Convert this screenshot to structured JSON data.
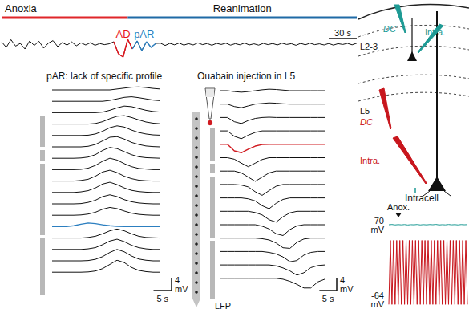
{
  "chart_data": [
    {
      "type": "line",
      "tick_labels": false,
      "epochs": [
        {
          "label": "Anoxia",
          "start": 0,
          "end": 135,
          "color": "#e0262a"
        },
        {
          "label": "Reanimation",
          "start": 135,
          "end": 380,
          "color": "#1f6aa6"
        }
      ],
      "x": [
        0,
        5,
        10,
        15,
        20,
        25,
        30,
        35,
        40,
        45,
        50,
        55,
        60,
        65,
        70,
        75,
        80,
        85,
        90,
        95,
        100,
        105,
        110,
        115,
        120,
        125,
        130,
        135,
        140,
        145,
        150,
        155,
        160,
        165,
        170,
        175,
        180,
        185,
        190,
        195,
        200,
        205,
        210,
        215,
        220,
        225,
        230,
        235,
        240,
        245,
        250,
        255,
        260,
        265,
        270,
        275,
        280,
        285,
        290,
        295,
        300,
        305,
        310,
        315,
        320,
        325,
        330,
        335,
        340,
        345,
        350,
        355,
        360,
        365,
        370,
        375,
        380
      ],
      "values": [
        1.5,
        -2,
        2.8,
        -1.2,
        0.5,
        -3,
        2,
        -0.8,
        1.8,
        -2.5,
        0.6,
        2.2,
        -1.5,
        1,
        -0.6,
        1.4,
        -1,
        0.8,
        -0.5,
        0.9,
        -0.7,
        0.4,
        -0.3,
        0.2,
        1.5,
        -6,
        -8,
        3,
        -3,
        2,
        -4,
        1.5,
        -2,
        0.5,
        0.6,
        -0.8,
        0.5,
        -0.4,
        0.7,
        -0.6,
        0.3,
        -0.5,
        0.8,
        -0.3,
        0.4,
        -0.7,
        0.5,
        -0.2,
        0.6,
        -0.6,
        0.3,
        -0.4,
        0.7,
        -0.5,
        0.2,
        -0.6,
        0.5,
        -0.3,
        0.4,
        -0.5,
        0.6,
        -0.2,
        0.3,
        -0.7,
        0.5,
        -0.4,
        0.6,
        -0.3,
        0.2,
        -0.5,
        0.4,
        -0.6,
        0.3,
        -0.2,
        0.5,
        -0.4,
        0.6
      ],
      "color": "#111111",
      "highlights": [
        {
          "label": "AD",
          "start": 120,
          "end": 140,
          "color": "#e8141c"
        },
        {
          "label": "pAR",
          "start": 140,
          "end": 165,
          "color": "#2c7fc0"
        }
      ],
      "xlim": [
        0,
        380
      ],
      "ylim": [
        -10,
        10
      ],
      "scale_bar": {
        "x": 30,
        "x_label": "30 s"
      }
    },
    {
      "type": "line",
      "title": "pAR: lack of specific profile",
      "tick_labels": false,
      "x": [
        0,
        2,
        4,
        6,
        8,
        10,
        12,
        14,
        16,
        18,
        20,
        22,
        24,
        26,
        28,
        30
      ],
      "xlim": [
        0,
        30
      ],
      "ylim": [
        -4,
        4
      ],
      "series": [
        {
          "color": "#111111",
          "values": [
            0,
            0,
            0,
            0,
            0,
            0,
            0,
            0,
            0,
            0.3,
            0.6,
            0.9,
            1,
            0.8,
            0.5,
            0.3
          ]
        },
        {
          "color": "#111111",
          "values": [
            0,
            0,
            0,
            0,
            0,
            0,
            0,
            0,
            0.3,
            0.8,
            1.3,
            1.5,
            1.2,
            0.8,
            0.4,
            0.2
          ]
        },
        {
          "color": "#111111",
          "values": [
            0,
            0,
            0,
            0,
            0,
            0,
            0,
            0.2,
            0.8,
            1.6,
            2.2,
            2,
            1.4,
            0.8,
            0.4,
            0.2
          ]
        },
        {
          "color": "#111111",
          "values": [
            0,
            0,
            0,
            0,
            0,
            0,
            0.2,
            0.8,
            1.8,
            2.6,
            2.8,
            2.2,
            1.4,
            0.7,
            0.3,
            0.1
          ]
        },
        {
          "color": "#111111",
          "values": [
            0,
            0,
            0,
            0,
            0,
            0.1,
            0.5,
            1.4,
            2.6,
            3.2,
            2.8,
            1.8,
            1,
            0.5,
            0.2,
            0.1
          ]
        },
        {
          "color": "#111111",
          "values": [
            0,
            0,
            0,
            0,
            0,
            0.2,
            0.8,
            2,
            3.2,
            3.4,
            2.6,
            1.5,
            0.8,
            0.3,
            0.1,
            0
          ]
        },
        {
          "color": "#111111",
          "values": [
            0,
            0,
            0,
            0,
            0.1,
            0.4,
            1.2,
            2.6,
            3.6,
            3.2,
            2.2,
            1.2,
            0.5,
            0.2,
            0.1,
            0
          ]
        },
        {
          "color": "#111111",
          "values": [
            0,
            0,
            0,
            0,
            0.1,
            0.5,
            1.4,
            2.8,
            3.8,
            3.2,
            2,
            1,
            0.4,
            0.2,
            0,
            0
          ]
        },
        {
          "color": "#111111",
          "values": [
            0,
            0,
            0,
            0,
            0.2,
            0.6,
            1.6,
            3,
            3.6,
            2.8,
            1.6,
            0.8,
            0.3,
            0.1,
            0,
            0
          ]
        },
        {
          "color": "#111111",
          "values": [
            0,
            0,
            0,
            0,
            0.2,
            0.6,
            1.5,
            2.8,
            3.4,
            2.6,
            1.5,
            0.7,
            0.3,
            0.1,
            0,
            0
          ]
        },
        {
          "color": "#111111",
          "values": [
            0,
            0,
            0,
            0,
            0.1,
            0.5,
            1.2,
            2.4,
            3,
            2.4,
            1.4,
            0.7,
            0.3,
            0.1,
            0,
            0
          ]
        },
        {
          "color": "#111111",
          "values": [
            0,
            0,
            0,
            0,
            0.1,
            0.4,
            1,
            2,
            2.6,
            2.2,
            1.4,
            0.7,
            0.3,
            0.1,
            0,
            0
          ]
        },
        {
          "color": "#2c7fc0",
          "values": [
            0,
            0,
            0,
            0.3,
            0.8,
            1.2,
            1,
            0.6,
            0.3,
            0.1,
            0,
            0,
            0,
            0,
            0,
            0
          ]
        },
        {
          "color": "#111111",
          "values": [
            0,
            0,
            0,
            0,
            0,
            0.2,
            0.6,
            1.4,
            2.4,
            3,
            2.4,
            1.4,
            0.6,
            0.2,
            0.1,
            0
          ]
        },
        {
          "color": "#111111",
          "values": [
            0,
            0,
            0,
            0,
            0,
            0.2,
            0.6,
            1.6,
            2.8,
            3.4,
            2.6,
            1.4,
            0.6,
            0.2,
            0,
            0
          ]
        },
        {
          "color": "#111111",
          "values": [
            0,
            0,
            0,
            0,
            0,
            0.1,
            0.5,
            1.4,
            2.8,
            3.8,
            3,
            1.6,
            0.6,
            0.2,
            0,
            0
          ]
        },
        {
          "color": "#111111",
          "values": [
            0,
            0,
            0,
            0,
            0,
            0.1,
            0.4,
            1.2,
            2.6,
            4,
            3.2,
            1.6,
            0.6,
            0.2,
            0,
            0
          ]
        }
      ],
      "scale_bar": {
        "x": 5,
        "x_label": "5 s",
        "y": 4,
        "y_label": "4 mV"
      }
    },
    {
      "type": "line",
      "title": "Ouabain injection in L5",
      "label": "LFP",
      "tick_labels": false,
      "x": [
        0,
        2,
        4,
        6,
        8,
        10,
        12,
        14,
        16,
        18,
        20,
        22,
        24,
        26,
        28,
        30
      ],
      "xlim": [
        0,
        30
      ],
      "ylim": [
        -4,
        4
      ],
      "series": [
        {
          "color": "#111111",
          "values": [
            0,
            0,
            -0.3,
            -0.5,
            -0.3,
            0,
            0.3,
            0.5,
            0.4,
            0.2,
            0,
            0,
            0,
            0,
            0,
            0
          ]
        },
        {
          "color": "#111111",
          "values": [
            0,
            0,
            -0.8,
            -1.2,
            -0.6,
            0,
            0.2,
            0.4,
            0.3,
            0.1,
            0,
            0,
            0,
            0,
            0,
            0
          ]
        },
        {
          "color": "#111111",
          "values": [
            0,
            0,
            -1.4,
            -2,
            -1,
            -0.3,
            0,
            0.1,
            0,
            0,
            0,
            0,
            0,
            0,
            0,
            0
          ]
        },
        {
          "color": "#111111",
          "values": [
            0,
            0,
            -1.8,
            -2.6,
            -1.4,
            -0.5,
            0,
            0,
            0,
            0,
            0,
            0,
            0,
            0,
            0,
            0
          ]
        },
        {
          "color": "#d01a20",
          "values": [
            0,
            0,
            -2.2,
            -2.8,
            -1.6,
            -0.6,
            -0.1,
            0,
            0,
            0,
            0,
            0,
            0,
            0,
            0,
            0
          ]
        },
        {
          "color": "#111111",
          "values": [
            0,
            0,
            -0.5,
            -1.8,
            -3,
            -1.8,
            -0.6,
            0,
            0,
            0,
            0,
            0,
            0,
            0,
            0,
            0
          ]
        },
        {
          "color": "#111111",
          "values": [
            0,
            0,
            0,
            -0.6,
            -2,
            -3.4,
            -2,
            -0.6,
            0,
            0,
            0,
            0,
            0,
            0,
            0,
            0
          ]
        },
        {
          "color": "#111111",
          "values": [
            0,
            0,
            0,
            -0.2,
            -0.8,
            -2.4,
            -3.6,
            -2,
            -0.6,
            0,
            0,
            0,
            0,
            0,
            0,
            0
          ]
        },
        {
          "color": "#111111",
          "values": [
            0,
            0,
            0,
            0,
            -0.3,
            -1,
            -2.6,
            -3.6,
            -1.8,
            -0.5,
            0,
            0,
            0,
            0,
            0,
            0
          ]
        },
        {
          "color": "#111111",
          "values": [
            0,
            0,
            0,
            0,
            0,
            -0.4,
            -1.2,
            -2.8,
            -3.6,
            -1.8,
            -0.5,
            0,
            0,
            0,
            0,
            0
          ]
        },
        {
          "color": "#111111",
          "values": [
            0,
            0,
            0,
            0,
            0,
            0,
            -0.5,
            -1.4,
            -3,
            -3.6,
            -1.6,
            -0.4,
            0,
            0,
            0,
            0
          ]
        },
        {
          "color": "#111111",
          "values": [
            0,
            0,
            0,
            0,
            0,
            0,
            -0.2,
            -0.6,
            -1.6,
            -3.2,
            -3.4,
            -1.4,
            -0.3,
            0,
            0,
            0
          ]
        },
        {
          "color": "#111111",
          "values": [
            0,
            0,
            0,
            0,
            0,
            0,
            0,
            -0.3,
            -0.8,
            -1.8,
            -3.4,
            -3,
            -1.2,
            -0.3,
            0,
            0
          ]
        },
        {
          "color": "#111111",
          "values": [
            0,
            0,
            0,
            0,
            0,
            0,
            0,
            0,
            -0.3,
            -1,
            -2,
            -3.4,
            -2.6,
            -0.9,
            -0.2,
            0
          ]
        },
        {
          "color": "#111111",
          "values": [
            0,
            0,
            0,
            0,
            0,
            0,
            0,
            0,
            0,
            -0.3,
            -1,
            -2,
            -3.2,
            -3.2,
            -1.2,
            -0.3
          ]
        }
      ],
      "scale_bar": {
        "x": 5,
        "x_label": "5 s",
        "y": 4,
        "y_label": "4 mV"
      }
    },
    {
      "type": "line",
      "title": "Intracell",
      "tick_labels": false,
      "annotation": {
        "label": "Anox.",
        "x": 0
      },
      "xlim": [
        0,
        50
      ],
      "series": [
        {
          "color": "#1d9a94",
          "ylim": [
            -80,
            -60
          ],
          "baseline": -70,
          "baseline_label": "-70 mV",
          "x": [
            0,
            2,
            4,
            6,
            8,
            10,
            12,
            14,
            16,
            18,
            20,
            22,
            24,
            26,
            28,
            30,
            32,
            34,
            36,
            38,
            40,
            42,
            44,
            46,
            48,
            50
          ],
          "values": [
            -70,
            -69.6,
            -70.3,
            -69.8,
            -70.2,
            -69.7,
            -70.4,
            -69.9,
            -70.1,
            -69.6,
            -70.3,
            -69.8,
            -70.2,
            -69.7,
            -70,
            -69.5,
            -70.3,
            -69.9,
            -70.2,
            -69.6,
            -70.1,
            -69.8,
            -70.3,
            -69.7,
            -70,
            -69.8
          ]
        },
        {
          "color": "#c8161d",
          "ylim": [
            -70,
            30
          ],
          "baseline": -64,
          "baseline_label": "-64 mV",
          "x": [
            0,
            1,
            2,
            3,
            4,
            5,
            6,
            7,
            8,
            9,
            10,
            11,
            12,
            13,
            14,
            15,
            16,
            17,
            18,
            19,
            20,
            21,
            22,
            23,
            24,
            25,
            26,
            27,
            28,
            29,
            30,
            31,
            32,
            33,
            34,
            35,
            36,
            37,
            38,
            39,
            40,
            41,
            42,
            43,
            44,
            45,
            46,
            47,
            48,
            49,
            50
          ],
          "values": [
            -64,
            20,
            -64,
            20,
            -64,
            20,
            -64,
            20,
            -64,
            20,
            -64,
            20,
            -64,
            20,
            -64,
            20,
            -64,
            20,
            -64,
            20,
            -64,
            20,
            -64,
            20,
            -64,
            20,
            -64,
            20,
            -64,
            20,
            -64,
            20,
            -64,
            20,
            -64,
            20,
            -64,
            20,
            -64,
            20,
            -64,
            20,
            -64,
            20,
            -64,
            20,
            -64,
            20,
            -64,
            20,
            -64
          ]
        }
      ]
    }
  ],
  "schematic": {
    "layers": [
      "L2-3",
      "L5"
    ],
    "electrodes": [
      {
        "color": "#1d9a94",
        "labels": [
          "DC",
          "Intra."
        ]
      },
      {
        "color": "#c8161d",
        "labels": [
          "DC",
          "Intra."
        ]
      }
    ]
  }
}
